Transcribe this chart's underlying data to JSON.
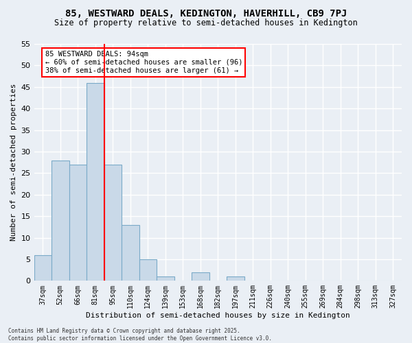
{
  "title1": "85, WESTWARD DEALS, KEDINGTON, HAVERHILL, CB9 7PJ",
  "title2": "Size of property relative to semi-detached houses in Kedington",
  "xlabel": "Distribution of semi-detached houses by size in Kedington",
  "ylabel": "Number of semi-detached properties",
  "bins": [
    "37sqm",
    "52sqm",
    "66sqm",
    "81sqm",
    "95sqm",
    "110sqm",
    "124sqm",
    "139sqm",
    "153sqm",
    "168sqm",
    "182sqm",
    "197sqm",
    "211sqm",
    "226sqm",
    "240sqm",
    "255sqm",
    "269sqm",
    "284sqm",
    "298sqm",
    "313sqm",
    "327sqm"
  ],
  "values": [
    6,
    28,
    27,
    46,
    27,
    13,
    5,
    1,
    0,
    2,
    0,
    1,
    0,
    0,
    0,
    0,
    0,
    0,
    0,
    0,
    0
  ],
  "bar_color": "#c9d9e8",
  "bar_edge_color": "#7aaac8",
  "property_line_x": 3.5,
  "property_line_color": "red",
  "annotation_title": "85 WESTWARD DEALS: 94sqm",
  "annotation_line1": "← 60% of semi-detached houses are smaller (96)",
  "annotation_line2": "38% of semi-detached houses are larger (61) →",
  "annotation_box_color": "red",
  "ylim": [
    0,
    55
  ],
  "yticks": [
    0,
    5,
    10,
    15,
    20,
    25,
    30,
    35,
    40,
    45,
    50,
    55
  ],
  "footer": "Contains HM Land Registry data © Crown copyright and database right 2025.\nContains public sector information licensed under the Open Government Licence v3.0.",
  "bg_color": "#eaeff5",
  "grid_color": "white"
}
